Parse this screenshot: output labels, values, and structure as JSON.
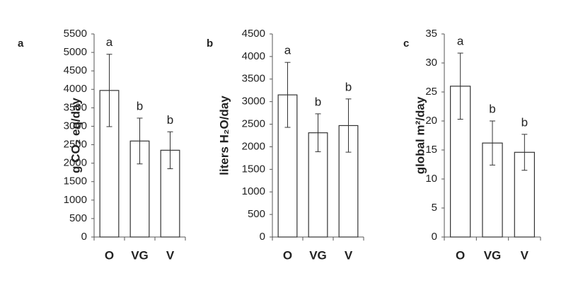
{
  "chart_data": [
    {
      "type": "bar",
      "panel": "a",
      "ylabel": "g CO₂ eq/day",
      "categories": [
        "O",
        "VG",
        "V"
      ],
      "values": [
        3970,
        2600,
        2350
      ],
      "errors": [
        980,
        620,
        500
      ],
      "letters": [
        "a",
        "b",
        "b"
      ],
      "color": "#ffffff",
      "ylim": [
        0,
        5500
      ],
      "yticks": [
        0,
        500,
        1000,
        1500,
        2000,
        2500,
        3000,
        3500,
        4000,
        4500,
        5000,
        5500
      ]
    },
    {
      "type": "bar",
      "panel": "b",
      "ylabel": "liters H₂O/day",
      "categories": [
        "O",
        "VG",
        "V"
      ],
      "values": [
        3150,
        2310,
        2470
      ],
      "errors": [
        720,
        420,
        590
      ],
      "letters": [
        "a",
        "b",
        "b"
      ],
      "color": "#ffffff",
      "ylim": [
        0,
        4500
      ],
      "yticks": [
        0,
        500,
        1000,
        1500,
        2000,
        2500,
        3000,
        3500,
        4000,
        4500
      ]
    },
    {
      "type": "bar",
      "panel": "c",
      "ylabel": "global m²/day",
      "categories": [
        "O",
        "VG",
        "V"
      ],
      "values": [
        26,
        16.2,
        14.6
      ],
      "errors": [
        5.7,
        3.8,
        3.1
      ],
      "letters": [
        "a",
        "b",
        "b"
      ],
      "color": "#ffffff",
      "ylim": [
        0,
        35
      ],
      "yticks": [
        0,
        5,
        10,
        15,
        20,
        25,
        30,
        35
      ]
    }
  ]
}
